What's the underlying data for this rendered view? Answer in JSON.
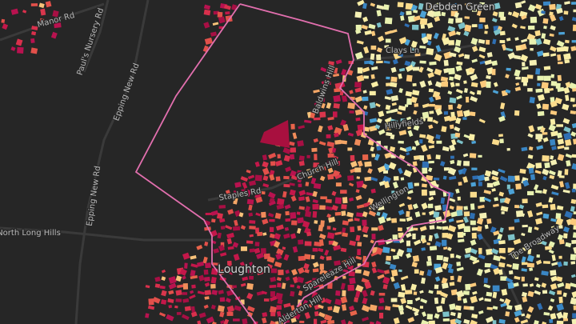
{
  "map": {
    "labels": [
      {
        "text": "Debden Green"
      },
      {
        "text": "Manor Rd"
      },
      {
        "text": "Paul's Nursery Rd"
      },
      {
        "text": "Epping New Rd"
      },
      {
        "text": "Epping New Rd"
      },
      {
        "text": "North Long Hills"
      },
      {
        "text": "Clays Ln"
      },
      {
        "text": "Hillyfields"
      },
      {
        "text": "Baldwins Hill"
      },
      {
        "text": "Staples Rd"
      },
      {
        "text": "Church Hill"
      },
      {
        "text": "Wellington"
      },
      {
        "text": "Loughton"
      },
      {
        "text": "Spareleaze Hill"
      },
      {
        "text": "Alderton Hill"
      },
      {
        "text": "The Broadway"
      }
    ]
  }
}
